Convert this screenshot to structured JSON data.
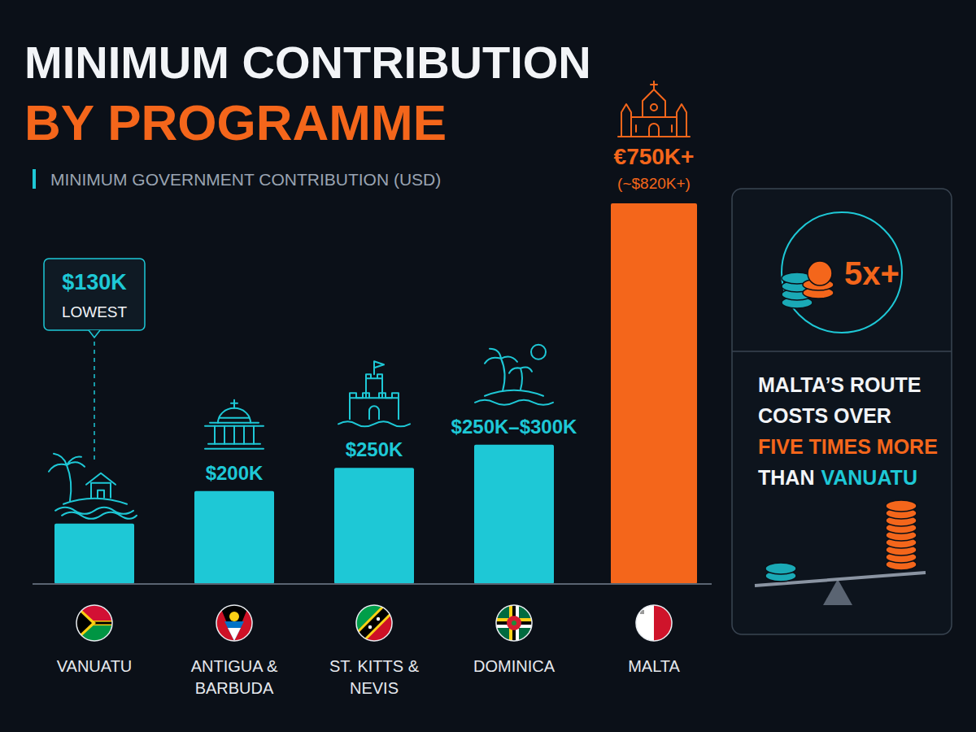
{
  "chart_data": {
    "type": "bar",
    "title": "MINIMUM CONTRIBUTION",
    "title_highlight": "BY PROGRAMME",
    "subtitle": "MINIMUM GOVERNMENT CONTRIBUTION (USD)",
    "categories": [
      "VANUATU",
      "ANTIGUA & BARBUDA",
      "ST. KITTS & NEVIS",
      "DOMINICA",
      "MALTA"
    ],
    "values": [
      130,
      200,
      250,
      300,
      820
    ],
    "value_labels": [
      "$130K",
      "$200K",
      "$250K",
      "$250K–$300K",
      "(~$820K+)"
    ],
    "colors": [
      "#1ec8d6",
      "#1ec8d6",
      "#1ec8d6",
      "#1ec8d6",
      "#f4661b"
    ],
    "ylim": [
      0,
      820
    ],
    "data_labels": true,
    "tick_labels": false,
    "annotations": {
      "lowest": "LOWEST",
      "max_original_currency": "€750K+",
      "badge": "5x+",
      "note": [
        [
          "MALTA’S ROUTE"
        ],
        [
          "COSTS OVER"
        ],
        [
          "FIVE TIMES MORE"
        ],
        [
          "THAN",
          "VANUATU"
        ]
      ]
    }
  }
}
